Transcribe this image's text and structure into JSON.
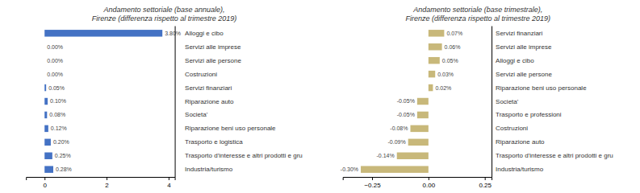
{
  "chart_data": [
    {
      "type": "bar",
      "orientation": "horizontal",
      "title": "Andamento settoriale (base annuale),\nFirenze (differenza rispetto al trimestre 2019)",
      "categories": [
        "Alloggi e cibo",
        "Servizi alle imprese",
        "Servizi alle persone",
        "Costruzioni",
        "Servizi finanziari",
        "Riparazione auto",
        "Societa'",
        "Riparazione beni uso personale",
        "Trasporto e logistica",
        "Trasporto d'interesse e altri prodotti e gru",
        "Industria/turismo"
      ],
      "values": [
        3.8,
        0.0,
        0.0,
        0.0,
        0.05,
        0.1,
        0.08,
        0.12,
        0.2,
        0.25,
        0.28
      ],
      "value_labels": [
        "3.80%",
        "0.00%",
        "0.00%",
        "0.00%",
        "0.05%",
        "0.10%",
        "0.08%",
        "0.12%",
        "0.20%",
        "0.25%",
        "0.28%"
      ],
      "data_labels": true,
      "color": "#4472C4",
      "xlim": [
        -0.6,
        4.2
      ],
      "xticks": [
        0,
        2,
        4
      ]
    },
    {
      "type": "bar",
      "orientation": "horizontal",
      "title": "Andamento settoriale (base trimestrale),\nFirenze (differenza rispetto al trimestre 2019)",
      "categories": [
        "Servizi finanziari",
        "Servizi alle imprese",
        "Alloggi e cibo",
        "Servizi alle persone",
        "Riparazione beni uso personale",
        "Societa'",
        "Trasporto e professioni",
        "Costruzioni",
        "Riparazione auto",
        "Trasporto d'interesse e altri prodotti e gru",
        "Industria/turismo"
      ],
      "values": [
        0.07,
        0.06,
        0.05,
        0.03,
        0.02,
        -0.05,
        -0.05,
        -0.08,
        -0.09,
        -0.14,
        -0.3
      ],
      "value_labels": [
        "0.07%",
        "0.06%",
        "0.05%",
        "0.03%",
        "0.02%",
        "-0.05%",
        "-0.05%",
        "-0.08%",
        "-0.09%",
        "-0.14%",
        "-0.30%"
      ],
      "data_labels": true,
      "color": "#C8B87A",
      "xlim": [
        -0.38,
        0.28
      ],
      "xticks": [
        {
          "value": -0.25,
          "label": "−0.25"
        },
        {
          "value": 0,
          "label": "0.00"
        },
        0.25
      ]
    }
  ]
}
